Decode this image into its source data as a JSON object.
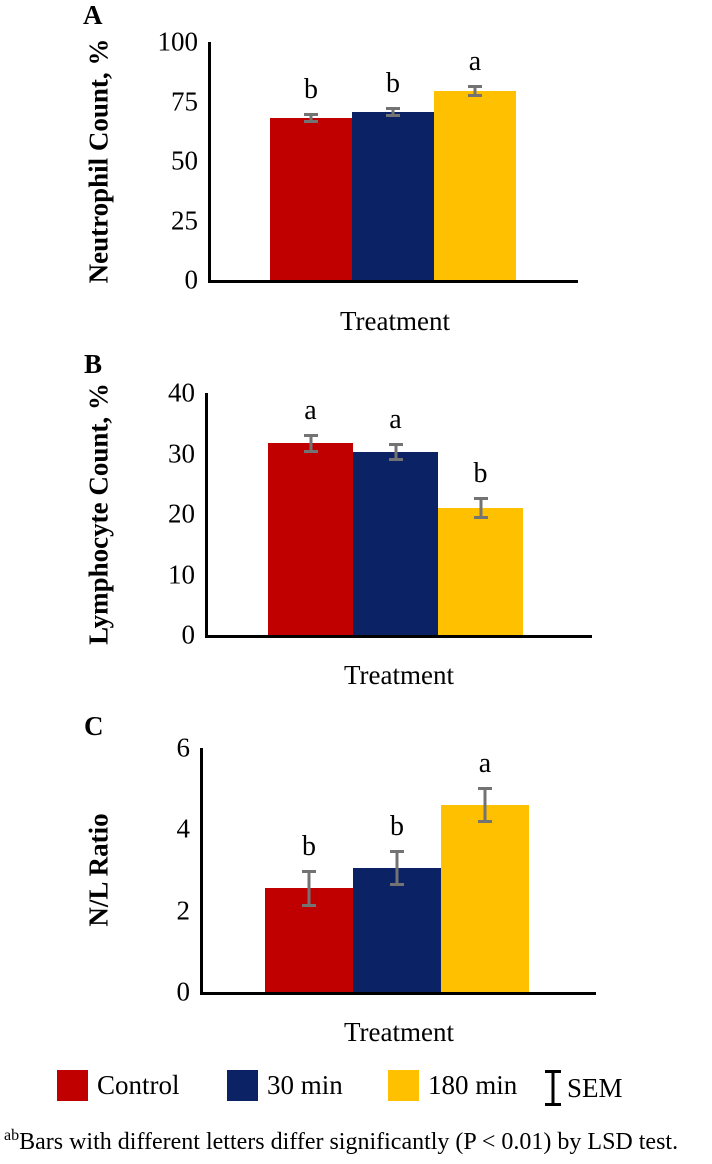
{
  "figure": {
    "panels": [
      "A",
      "B",
      "C"
    ],
    "treatment_axis_label": "Treatment"
  },
  "chart_data": [
    {
      "type": "bar",
      "panel": "A",
      "ylabel": "Neutrophil Count, %",
      "xlabel": "Treatment",
      "categories": [
        "Control",
        "30 min",
        "180 min"
      ],
      "values": [
        68,
        70.5,
        79.4
      ],
      "errors": [
        2.0,
        2.0,
        2.5
      ],
      "sig_letters": [
        "b",
        "b",
        "a"
      ],
      "yticks": [
        0,
        25,
        50,
        75,
        100
      ],
      "ylim": [
        0,
        100
      ],
      "grid": false,
      "legend_position": "bottom-shared"
    },
    {
      "type": "bar",
      "panel": "B",
      "ylabel": "Lymphocyte Count, %",
      "xlabel": "Treatment",
      "categories": [
        "Control",
        "30 min",
        "180 min"
      ],
      "values": [
        31.7,
        30.2,
        21.0
      ],
      "errors": [
        1.6,
        1.5,
        1.8
      ],
      "sig_letters": [
        "a",
        "a",
        "b"
      ],
      "yticks": [
        0,
        10,
        20,
        30,
        40
      ],
      "ylim": [
        0,
        40
      ],
      "grid": false,
      "legend_position": "bottom-shared"
    },
    {
      "type": "bar",
      "panel": "C",
      "ylabel": "N/L Ratio",
      "xlabel": "Treatment",
      "categories": [
        "Control",
        "30 min",
        "180 min"
      ],
      "values": [
        2.55,
        3.05,
        4.6
      ],
      "errors": [
        0.45,
        0.45,
        0.45
      ],
      "sig_letters": [
        "b",
        "b",
        "a"
      ],
      "yticks": [
        0,
        2,
        4,
        6
      ],
      "ylim": [
        0,
        6
      ],
      "grid": false,
      "legend_position": "bottom-shared"
    }
  ],
  "legend": {
    "items": [
      {
        "label": "Control",
        "color": "#C00000",
        "symbol": "square"
      },
      {
        "label": "30 min",
        "color": "#0B2265",
        "symbol": "square"
      },
      {
        "label": "180 min",
        "color": "#FFC000",
        "symbol": "square"
      },
      {
        "label": "SEM",
        "color": "#000000",
        "symbol": "error-bar-icon"
      }
    ]
  },
  "footnote": {
    "superscript": "ab",
    "text": "Bars with different letters differ significantly (P < 0.01) by LSD test."
  },
  "colors": {
    "bar_control": "#C00000",
    "bar_30min": "#0B2265",
    "bar_180min": "#FFC000",
    "error_bar": "#737373",
    "axis": "#000000",
    "background": "#FFFFFF"
  }
}
